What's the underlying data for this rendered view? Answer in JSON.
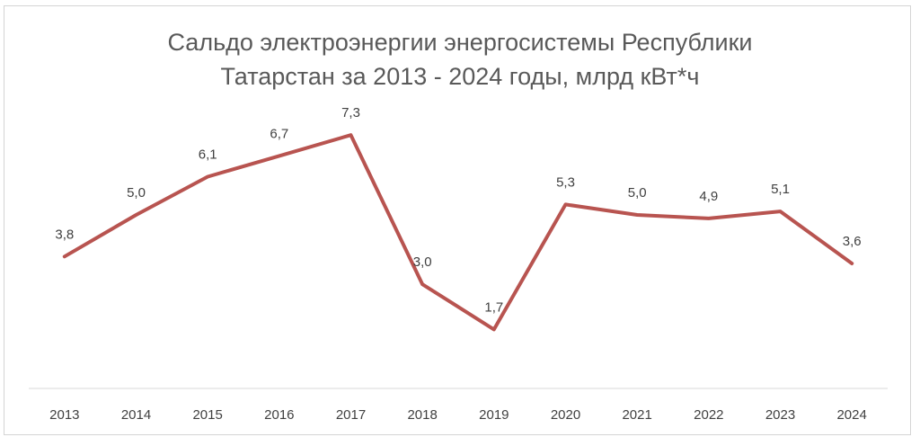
{
  "chart_data": {
    "type": "line",
    "title_lines": [
      "Сальдо электроэнергии энергосистемы Республики",
      "Татарстан за 2013 - 2024 годы, млрд кВт*ч"
    ],
    "categories": [
      "2013",
      "2014",
      "2015",
      "2016",
      "2017",
      "2018",
      "2019",
      "2020",
      "2021",
      "2022",
      "2023",
      "2024"
    ],
    "series": [
      {
        "values": [
          3.8,
          5.0,
          6.1,
          6.7,
          7.3,
          3.0,
          1.7,
          5.3,
          5.0,
          4.9,
          5.1,
          3.6
        ],
        "labels": [
          "3,8",
          "5,0",
          "6,1",
          "6,7",
          "7,3",
          "3,0",
          "1,7",
          "5,3",
          "5,0",
          "4,9",
          "5,1",
          "3,6"
        ],
        "color": "#b85450"
      }
    ],
    "ylim": [
      0,
      8.3
    ],
    "grid": false,
    "legend": "none",
    "axis_color": "#d9d9d9"
  }
}
